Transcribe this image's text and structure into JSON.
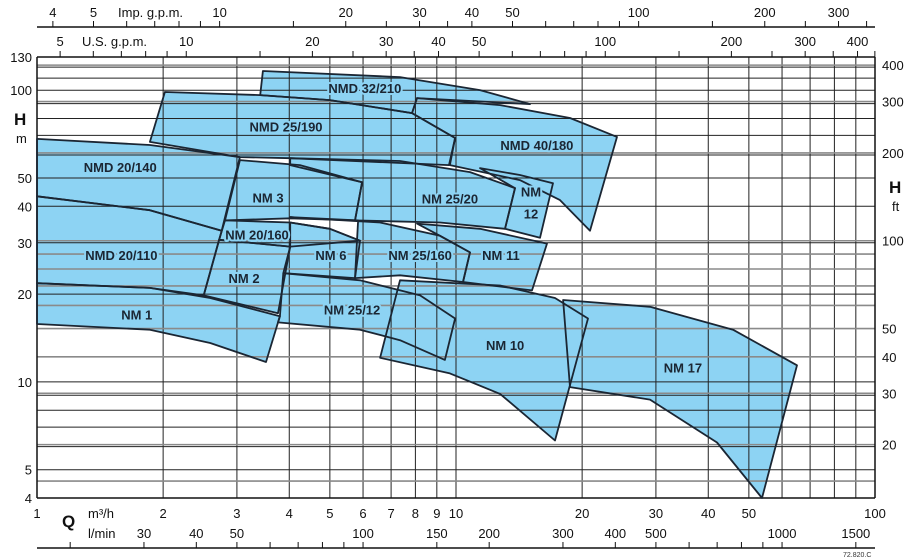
{
  "chart_data": {
    "type": "area",
    "x_scale": "log",
    "y_scale": "log",
    "xlim": [
      1,
      100
    ],
    "ylim": [
      4,
      130
    ],
    "grid": true,
    "colors": {
      "region_fill": "#8dd3f3",
      "outline": "#1b2633",
      "grid_metric": "#222222",
      "grid_ft": "#8a8a8a"
    },
    "x_axis": {
      "symbol": "Q",
      "unit": "m³/h",
      "ticks": [
        "1",
        "2",
        "3",
        "4",
        "5",
        "6",
        "7",
        "8",
        "9",
        "10",
        "20",
        "30",
        "40",
        "50",
        "100"
      ]
    },
    "x_axis_lmin": {
      "unit": "l/min",
      "ticks": [
        "30",
        "40",
        "50",
        "100",
        "150",
        "200",
        "300",
        "400",
        "500",
        "1000",
        "1500"
      ]
    },
    "x_axis_imp_gpm": {
      "unit": "Imp. g.p.m.",
      "ticks": [
        "4",
        "5",
        "10",
        "20",
        "30",
        "40",
        "50",
        "100",
        "200",
        "300"
      ]
    },
    "x_axis_us_gpm": {
      "unit": "U.S. g.p.m.",
      "ticks": [
        "5",
        "10",
        "20",
        "30",
        "40",
        "50",
        "100",
        "200",
        "300",
        "400"
      ]
    },
    "y_axis": {
      "symbol": "H",
      "unit": "m",
      "ticks": [
        "4",
        "5",
        "10",
        "20",
        "30",
        "40",
        "50",
        "100",
        "130"
      ]
    },
    "y_axis_ft": {
      "symbol": "H",
      "unit": "ft",
      "ticks": [
        "20",
        "30",
        "40",
        "50",
        "100",
        "200",
        "300",
        "400"
      ]
    },
    "regions": [
      {
        "name": "NMD 32/210",
        "label_at": [
          6.06,
          101.7
        ],
        "points": [
          [
            3.46,
            116.4
          ],
          [
            7.35,
            110.9
          ],
          [
            11.41,
            100.1
          ],
          [
            15.02,
            89.6
          ],
          [
            8.07,
            94.0
          ],
          [
            7.85,
            83.5
          ],
          [
            5.0,
            92.5
          ],
          [
            3.41,
            96.2
          ]
        ]
      },
      {
        "name": "NMD 40/180",
        "label_at": [
          15.6,
          64.9
        ],
        "points": [
          [
            8.07,
            94.0
          ],
          [
            12.74,
            88.9
          ],
          [
            18.71,
            80.3
          ],
          [
            24.23,
            69.2
          ],
          [
            20.88,
            33.0
          ],
          [
            17.71,
            42.0
          ],
          [
            14.21,
            49.2
          ],
          [
            9.67,
            55.4
          ],
          [
            9.95,
            68.6
          ],
          [
            7.85,
            83.5
          ]
        ]
      },
      {
        "name": "NMD 25/190",
        "label_at": [
          3.93,
          75.0
        ],
        "points": [
          [
            1.86,
            66.5
          ],
          [
            2.02,
            98.6
          ],
          [
            3.41,
            96.2
          ],
          [
            5.0,
            92.5
          ],
          [
            7.85,
            83.5
          ],
          [
            9.95,
            68.6
          ],
          [
            9.62,
            55.4
          ],
          [
            4.02,
            58.5
          ],
          [
            3.05,
            59.0
          ]
        ]
      },
      {
        "name": "NMD 20/140",
        "label_at": [
          1.58,
          54.5
        ],
        "points": [
          [
            1,
            68.1
          ],
          [
            1.86,
            64.9
          ],
          [
            3.05,
            59.0
          ],
          [
            2.76,
            33.0
          ],
          [
            1.86,
            38.8
          ],
          [
            1,
            43.3
          ]
        ]
      },
      {
        "name": "NMD 20/110",
        "label_at": [
          1.59,
          27.2
        ],
        "points": [
          [
            1,
            43.3
          ],
          [
            1.86,
            38.8
          ],
          [
            2.76,
            33.0
          ],
          [
            2.5,
            19.8
          ],
          [
            1.86,
            21.0
          ],
          [
            1,
            21.8
          ]
        ]
      },
      {
        "name": "NM 1",
        "label_at": [
          1.73,
          17.0
        ],
        "points": [
          [
            1,
            21.8
          ],
          [
            1.86,
            21.0
          ],
          [
            2.59,
            19.4
          ],
          [
            3.8,
            16.8
          ],
          [
            3.52,
            11.7
          ],
          [
            2.59,
            13.6
          ],
          [
            1.86,
            15.1
          ],
          [
            1,
            15.8
          ]
        ]
      },
      {
        "name": "NM 3",
        "label_at": [
          3.56,
          42.9
        ],
        "points": [
          [
            3.05,
            57.6
          ],
          [
            4.24,
            55.4
          ],
          [
            5.97,
            48.4
          ],
          [
            5.74,
            35.8
          ],
          [
            4.02,
            36.4
          ],
          [
            2.81,
            35.8
          ]
        ]
      },
      {
        "name": "NM 25/20",
        "label_at": [
          9.67,
          42.6
        ],
        "points": [
          [
            4.02,
            58.5
          ],
          [
            7.35,
            57.2
          ],
          [
            10.8,
            52.4
          ],
          [
            13.83,
            46.2
          ],
          [
            13.09,
            33.5
          ],
          [
            9.16,
            35.2
          ],
          [
            5.74,
            35.8
          ],
          [
            5.97,
            48.4
          ],
          [
            4.02,
            55.4
          ]
        ]
      },
      {
        "name": "NM 12",
        "label_lines": [
          "NM",
          "12"
        ],
        "label_at": [
          15.1,
          41.3
        ],
        "points": [
          [
            11.41,
            54.1
          ],
          [
            14.21,
            51.2
          ],
          [
            17.04,
            48.0
          ],
          [
            15.87,
            31.2
          ],
          [
            13.09,
            33.5
          ],
          [
            13.83,
            46.2
          ]
        ]
      },
      {
        "name": "NM 20/160",
        "label_at": [
          3.35,
          32.0
        ],
        "points": [
          [
            2.81,
            35.8
          ],
          [
            4.02,
            35.2
          ],
          [
            5.0,
            33.5
          ],
          [
            5.9,
            30.5
          ],
          [
            4.02,
            29.1
          ],
          [
            2.72,
            30.7
          ]
        ]
      },
      {
        "name": "NM 6",
        "label_at": [
          5.03,
          27.2
        ],
        "points": [
          [
            4.02,
            35.2
          ],
          [
            5.0,
            33.5
          ],
          [
            5.9,
            30.5
          ],
          [
            5.74,
            22.7
          ],
          [
            3.87,
            23.6
          ],
          [
            4.02,
            29.1
          ]
        ]
      },
      {
        "name": "NM 25/160",
        "label_at": [
          8.21,
          27.2
        ],
        "points": [
          [
            4.02,
            36.7
          ],
          [
            6.59,
            35.2
          ],
          [
            9.16,
            31.7
          ],
          [
            10.8,
            27.8
          ],
          [
            10.39,
            22.0
          ],
          [
            7.35,
            23.2
          ],
          [
            5.74,
            22.7
          ],
          [
            5.84,
            35.8
          ]
        ]
      },
      {
        "name": "NM 11",
        "label_at": [
          12.8,
          27.2
        ],
        "points": [
          [
            8.07,
            34.9
          ],
          [
            11.41,
            33.5
          ],
          [
            16.49,
            29.8
          ],
          [
            15.18,
            20.6
          ],
          [
            10.39,
            22.0
          ],
          [
            10.8,
            27.8
          ],
          [
            9.16,
            31.7
          ]
        ]
      },
      {
        "name": "NM 2",
        "label_at": [
          3.12,
          22.7
        ],
        "points": [
          [
            2.72,
            30.7
          ],
          [
            4.02,
            29.1
          ],
          [
            3.76,
            17.2
          ],
          [
            2.5,
            19.8
          ]
        ]
      },
      {
        "name": "NM 25/12",
        "label_at": [
          5.65,
          17.7
        ],
        "points": [
          [
            3.87,
            23.6
          ],
          [
            5.9,
            22.3
          ],
          [
            8.21,
            19.8
          ],
          [
            9.95,
            16.5
          ],
          [
            9.41,
            11.9
          ],
          [
            7.35,
            13.9
          ],
          [
            5.9,
            15.1
          ],
          [
            3.76,
            16.0
          ],
          [
            3.8,
            16.8
          ]
        ]
      },
      {
        "name": "NM 10",
        "label_at": [
          13.1,
          13.4
        ],
        "points": [
          [
            7.35,
            22.3
          ],
          [
            12.74,
            21.4
          ],
          [
            17.23,
            19.4
          ],
          [
            20.65,
            16.5
          ],
          [
            17.23,
            6.3
          ],
          [
            12.74,
            9.1
          ],
          [
            9.67,
            10.7
          ],
          [
            6.59,
            12.1
          ]
        ]
      },
      {
        "name": "NM 17",
        "label_at": [
          34.8,
          11.2
        ],
        "points": [
          [
            18.01,
            19.1
          ],
          [
            29.04,
            18.1
          ],
          [
            45.83,
            15.1
          ],
          [
            65.13,
            11.4
          ],
          [
            53.75,
            4.0
          ],
          [
            41.96,
            6.2
          ],
          [
            29.04,
            8.7
          ],
          [
            18.71,
            9.6
          ]
        ]
      }
    ],
    "annotations": [
      "72.820.C"
    ]
  }
}
